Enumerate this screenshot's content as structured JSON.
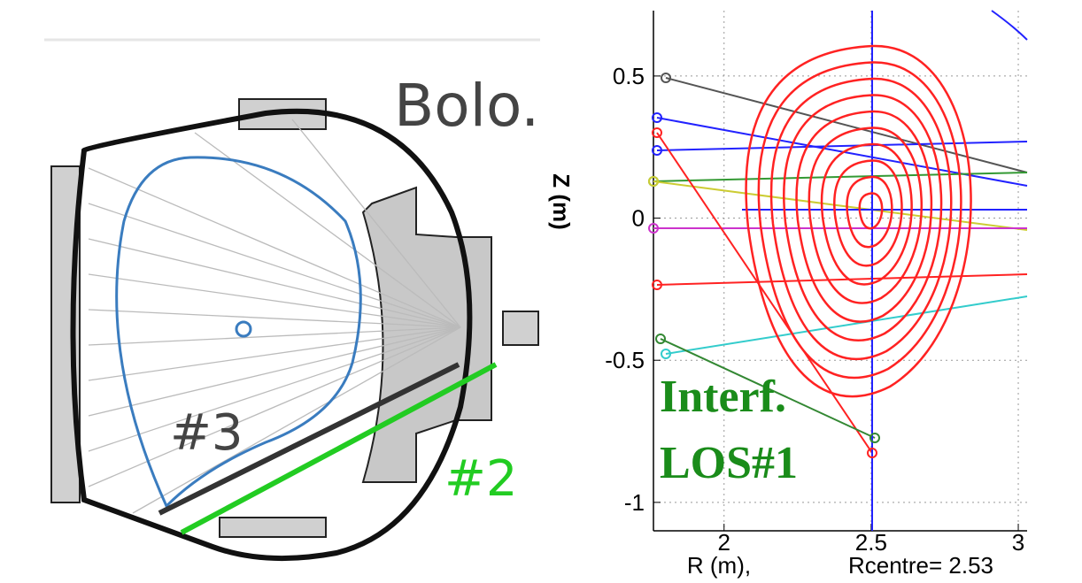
{
  "diagram": {
    "labels": [
      "Bolo.",
      "#3",
      "#2"
    ]
  },
  "chart_data": {
    "type": "contour",
    "ylabel": "Z (m)",
    "xlabel": "R (m),",
    "subtitle": "Rcentre= 2.53",
    "annotation": [
      "Interf.",
      "LOS#1"
    ],
    "xlim": [
      1.76,
      3.03
    ],
    "ylim": [
      -1.1,
      0.73
    ],
    "xticks": [
      2,
      2.5,
      3
    ],
    "yticks": [
      0.5,
      0,
      -0.5,
      -1
    ],
    "grid": true
  }
}
